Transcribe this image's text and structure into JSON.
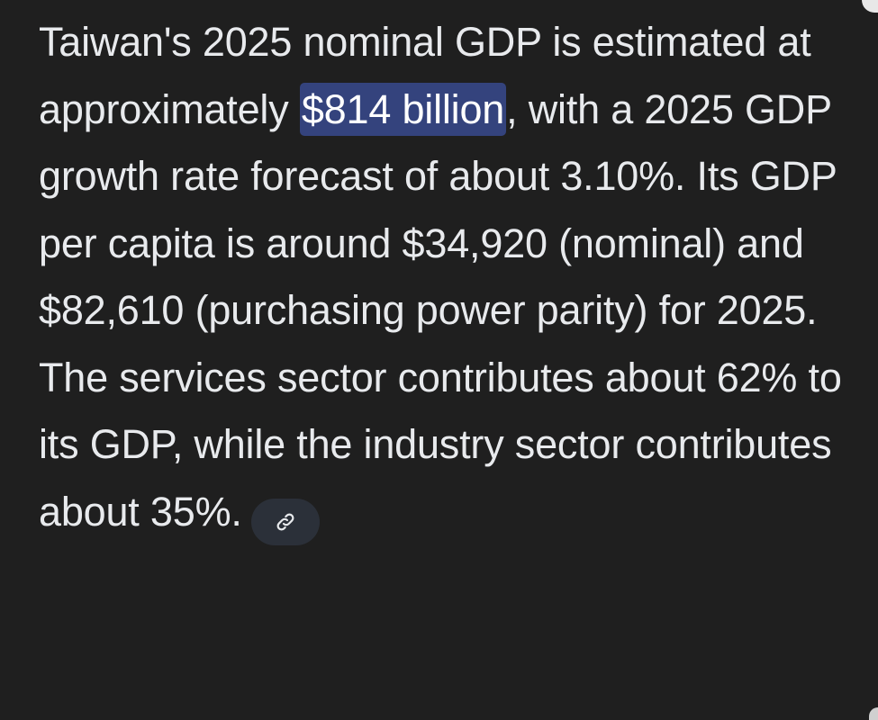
{
  "answer": {
    "segment_before": "Taiwan's 2025 nominal GDP is estimated at approximately ",
    "highlight": "$814 billion",
    "segment_after": ", with a 2025 GDP growth rate forecast of about 3.10%. Its GDP per capita is around $34,920 (nominal) and $82,610 (purchasing power parity) for 2025. The services sector contributes about 62% to its GDP, while the industry sector contributes about 35%."
  },
  "source_link": {
    "icon": "link-icon"
  },
  "colors": {
    "background": "#1f1f1f",
    "text": "#e8eaed",
    "highlight_bg": "#34437d",
    "chip_bg": "#2b3039"
  }
}
